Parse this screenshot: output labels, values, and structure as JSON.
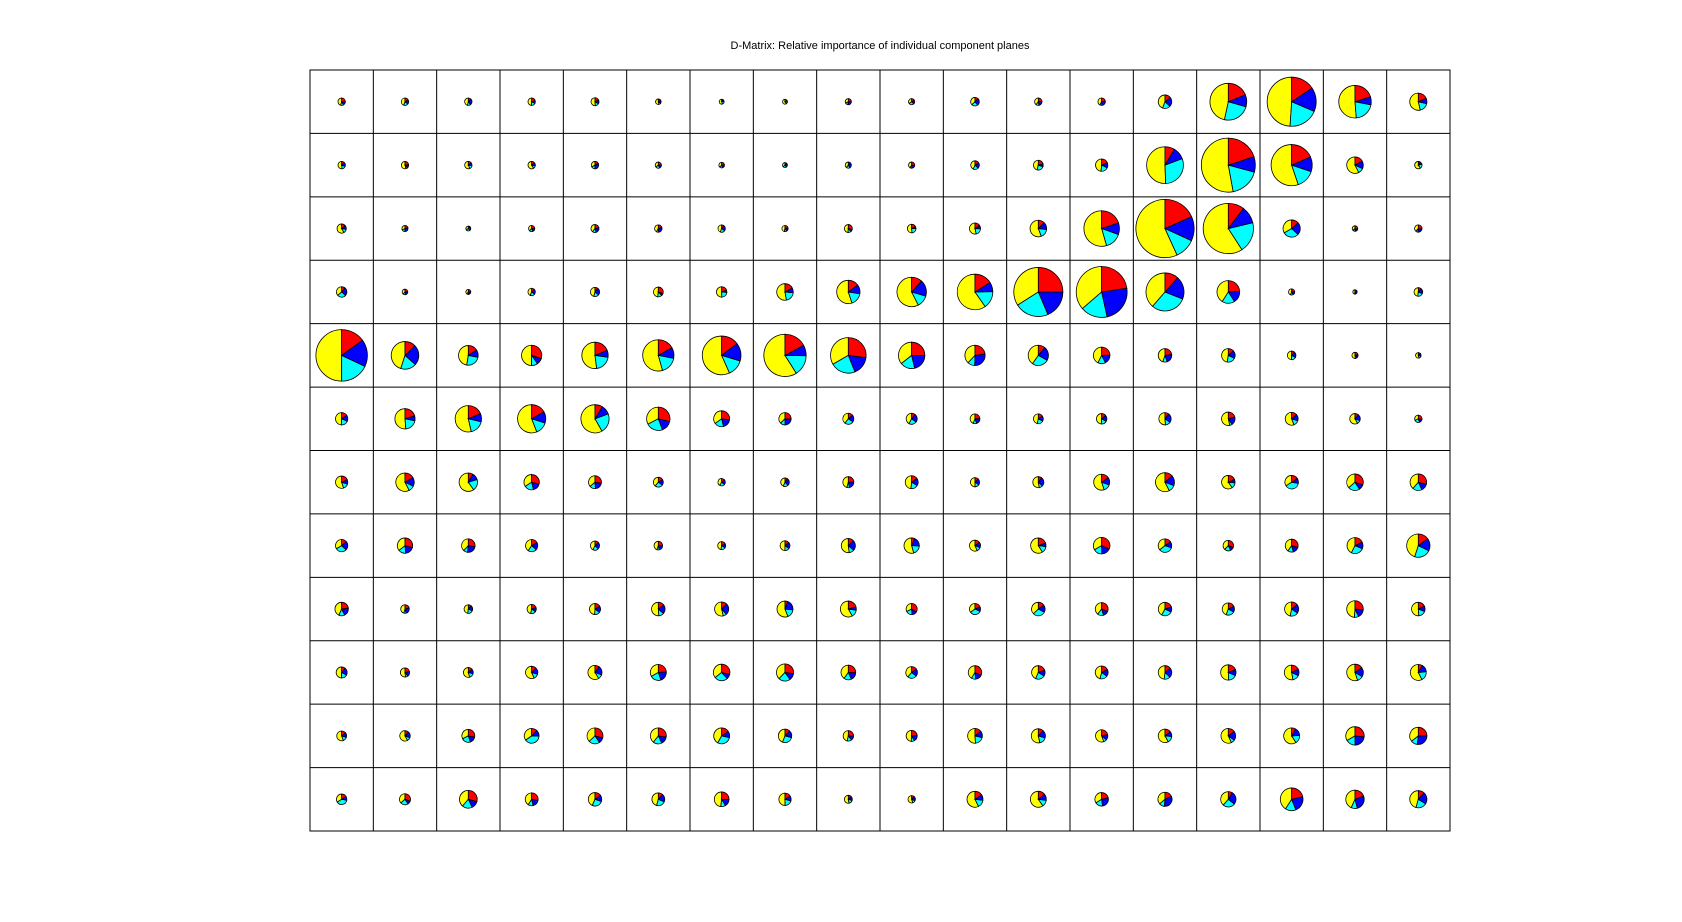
{
  "title": "D-Matrix: Relative importance of individual component planes",
  "colors": {
    "background": "#ffffff",
    "grid": "#000000",
    "slices": [
      "#ffff00",
      "#00ffff",
      "#0000ff",
      "#ff0000"
    ]
  },
  "chart_data": {
    "type": "pie",
    "layout": "grid of pie charts",
    "title": "D-Matrix: Relative importance of individual component planes",
    "rows": 12,
    "cols": 18,
    "slice_colors": [
      "yellow",
      "cyan",
      "blue",
      "red"
    ],
    "sizes": [
      [
        0.12,
        0.12,
        0.12,
        0.12,
        0.13,
        0.09,
        0.08,
        0.08,
        0.1,
        0.1,
        0.14,
        0.12,
        0.12,
        0.22,
        0.6,
        0.8,
        0.53,
        0.28
      ],
      [
        0.12,
        0.12,
        0.12,
        0.12,
        0.12,
        0.1,
        0.09,
        0.08,
        0.1,
        0.1,
        0.14,
        0.16,
        0.2,
        0.6,
        0.88,
        0.67,
        0.27,
        0.12
      ],
      [
        0.15,
        0.1,
        0.08,
        0.1,
        0.13,
        0.12,
        0.12,
        0.1,
        0.13,
        0.14,
        0.18,
        0.27,
        0.58,
        0.95,
        0.82,
        0.28,
        0.09,
        0.12
      ],
      [
        0.17,
        0.09,
        0.08,
        0.12,
        0.15,
        0.16,
        0.17,
        0.27,
        0.38,
        0.48,
        0.58,
        0.8,
        0.83,
        0.62,
        0.37,
        0.1,
        0.07,
        0.14
      ],
      [
        0.84,
        0.45,
        0.32,
        0.33,
        0.43,
        0.51,
        0.63,
        0.69,
        0.58,
        0.43,
        0.33,
        0.33,
        0.27,
        0.22,
        0.22,
        0.14,
        0.1,
        0.09
      ],
      [
        0.2,
        0.33,
        0.43,
        0.46,
        0.46,
        0.38,
        0.26,
        0.2,
        0.18,
        0.18,
        0.16,
        0.16,
        0.17,
        0.2,
        0.22,
        0.21,
        0.17,
        0.12
      ],
      [
        0.2,
        0.3,
        0.3,
        0.25,
        0.21,
        0.16,
        0.12,
        0.14,
        0.18,
        0.21,
        0.15,
        0.18,
        0.26,
        0.31,
        0.22,
        0.22,
        0.27,
        0.27
      ],
      [
        0.2,
        0.25,
        0.22,
        0.2,
        0.15,
        0.14,
        0.13,
        0.16,
        0.23,
        0.25,
        0.18,
        0.25,
        0.27,
        0.22,
        0.17,
        0.21,
        0.26,
        0.38
      ],
      [
        0.22,
        0.14,
        0.14,
        0.15,
        0.18,
        0.22,
        0.23,
        0.26,
        0.26,
        0.18,
        0.18,
        0.22,
        0.21,
        0.22,
        0.2,
        0.23,
        0.27,
        0.22
      ],
      [
        0.18,
        0.15,
        0.16,
        0.2,
        0.23,
        0.26,
        0.27,
        0.28,
        0.24,
        0.19,
        0.22,
        0.22,
        0.21,
        0.22,
        0.25,
        0.24,
        0.27,
        0.26
      ],
      [
        0.16,
        0.17,
        0.21,
        0.24,
        0.26,
        0.26,
        0.26,
        0.22,
        0.17,
        0.18,
        0.24,
        0.23,
        0.2,
        0.22,
        0.24,
        0.26,
        0.3,
        0.28
      ],
      [
        0.17,
        0.18,
        0.29,
        0.21,
        0.22,
        0.21,
        0.24,
        0.2,
        0.13,
        0.12,
        0.26,
        0.26,
        0.22,
        0.23,
        0.25,
        0.37,
        0.3,
        0.28
      ]
    ],
    "slice_fractions_sample": {
      "large_cell": [
        0.5,
        0.18,
        0.17,
        0.15
      ]
    },
    "grid": true,
    "xlabel": "",
    "ylabel": ""
  }
}
